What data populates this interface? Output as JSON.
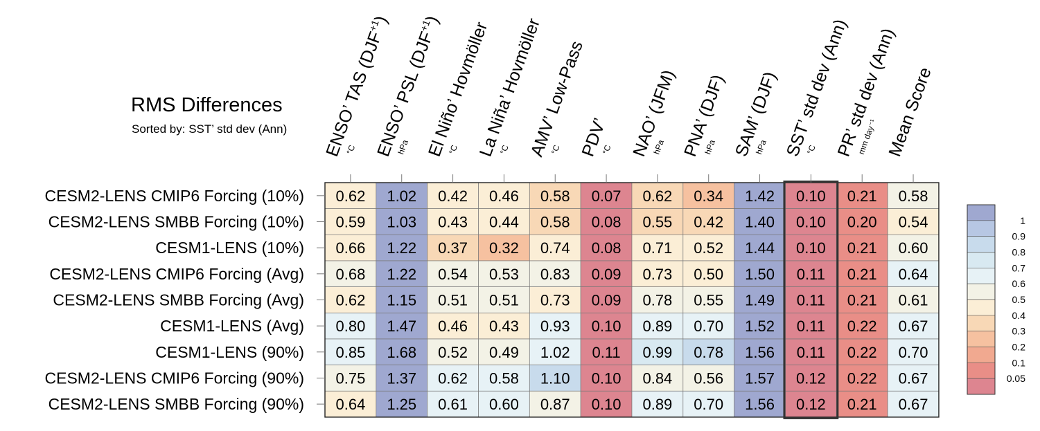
{
  "title": "RMS Differences",
  "subtitle": "Sorted by: SST’ std dev (Ann)",
  "highlight_column": 9,
  "chart_data": {
    "type": "heatmap",
    "title": "RMS Differences",
    "subtitle": "Sorted by: SST’ std dev (Ann)",
    "columns": [
      {
        "label": "ENSO’ TAS (DJF",
        "sup": "+1",
        "close": ")",
        "unit": "°C"
      },
      {
        "label": "ENSO’ PSL (DJF",
        "sup": "+1",
        "close": ")",
        "unit": "hPa"
      },
      {
        "label": "El Niño’ Hovmöller",
        "sup": "",
        "close": "",
        "unit": "°C"
      },
      {
        "label": "La Niña’ Hovmöller",
        "sup": "",
        "close": "",
        "unit": "°C"
      },
      {
        "label": "AMV’ Low-Pass",
        "sup": "",
        "close": "",
        "unit": "°C"
      },
      {
        "label": "PDV’",
        "sup": "",
        "close": "",
        "unit": "°C"
      },
      {
        "label": "NAO’ (JFM)",
        "sup": "",
        "close": "",
        "unit": "hPa"
      },
      {
        "label": "PNA’ (DJF)",
        "sup": "",
        "close": "",
        "unit": "hPa"
      },
      {
        "label": "SAM’ (DJF)",
        "sup": "",
        "close": "",
        "unit": "hPa"
      },
      {
        "label": "SST’ std dev (Ann)",
        "sup": "",
        "close": "",
        "unit": "°C"
      },
      {
        "label": "PR’ std dev (Ann)",
        "sup": "",
        "close": "",
        "unit": "mm day⁻¹"
      },
      {
        "label": "Mean Score",
        "sup": "",
        "close": "",
        "unit": ""
      }
    ],
    "rows": [
      {
        "label": "CESM2-LENS CMIP6 Forcing (10%)",
        "values": [
          0.62,
          1.02,
          0.42,
          0.46,
          0.58,
          0.07,
          0.62,
          0.34,
          1.42,
          0.1,
          0.21,
          0.58
        ]
      },
      {
        "label": "CESM2-LENS SMBB Forcing (10%)",
        "values": [
          0.59,
          1.03,
          0.43,
          0.44,
          0.58,
          0.08,
          0.55,
          0.42,
          1.4,
          0.1,
          0.2,
          0.54
        ]
      },
      {
        "label": "CESM1-LENS (10%)",
        "values": [
          0.66,
          1.22,
          0.37,
          0.32,
          0.74,
          0.08,
          0.71,
          0.52,
          1.44,
          0.1,
          0.21,
          0.6
        ]
      },
      {
        "label": "CESM2-LENS CMIP6 Forcing (Avg)",
        "values": [
          0.68,
          1.22,
          0.54,
          0.53,
          0.83,
          0.09,
          0.73,
          0.5,
          1.5,
          0.11,
          0.21,
          0.64
        ]
      },
      {
        "label": "CESM2-LENS SMBB Forcing (Avg)",
        "values": [
          0.62,
          1.15,
          0.51,
          0.51,
          0.73,
          0.09,
          0.78,
          0.55,
          1.49,
          0.11,
          0.21,
          0.61
        ]
      },
      {
        "label": "CESM1-LENS (Avg)",
        "values": [
          0.8,
          1.47,
          0.46,
          0.43,
          0.93,
          0.1,
          0.89,
          0.7,
          1.52,
          0.11,
          0.22,
          0.67
        ]
      },
      {
        "label": "CESM1-LENS (90%)",
        "values": [
          0.85,
          1.68,
          0.52,
          0.49,
          1.02,
          0.11,
          0.99,
          0.78,
          1.56,
          0.11,
          0.22,
          0.7
        ]
      },
      {
        "label": "CESM2-LENS CMIP6 Forcing (90%)",
        "values": [
          0.75,
          1.37,
          0.62,
          0.58,
          1.1,
          0.1,
          0.84,
          0.56,
          1.57,
          0.12,
          0.22,
          0.67
        ]
      },
      {
        "label": "CESM2-LENS SMBB Forcing (90%)",
        "values": [
          0.64,
          1.25,
          0.61,
          0.6,
          0.87,
          0.1,
          0.89,
          0.7,
          1.56,
          0.12,
          0.21,
          0.67
        ]
      }
    ],
    "colorbar": {
      "bins": [
        {
          "color": "#9fa8d0"
        },
        {
          "color": "#b7c7e3"
        },
        {
          "color": "#c8dbec"
        },
        {
          "color": "#d8e9f1"
        },
        {
          "color": "#e7f2f6"
        },
        {
          "color": "#f3f2e6"
        },
        {
          "color": "#fbeed6"
        },
        {
          "color": "#f8d8b6"
        },
        {
          "color": "#f6c1a0"
        },
        {
          "color": "#f1a990"
        },
        {
          "color": "#e98e87"
        },
        {
          "color": "#dd8590"
        }
      ],
      "tick_labels": [
        "1",
        "0.9",
        "0.8",
        "0.7",
        "0.6",
        "0.5",
        "0.4",
        "0.3",
        "0.2",
        "0.1",
        "0.05"
      ]
    }
  }
}
